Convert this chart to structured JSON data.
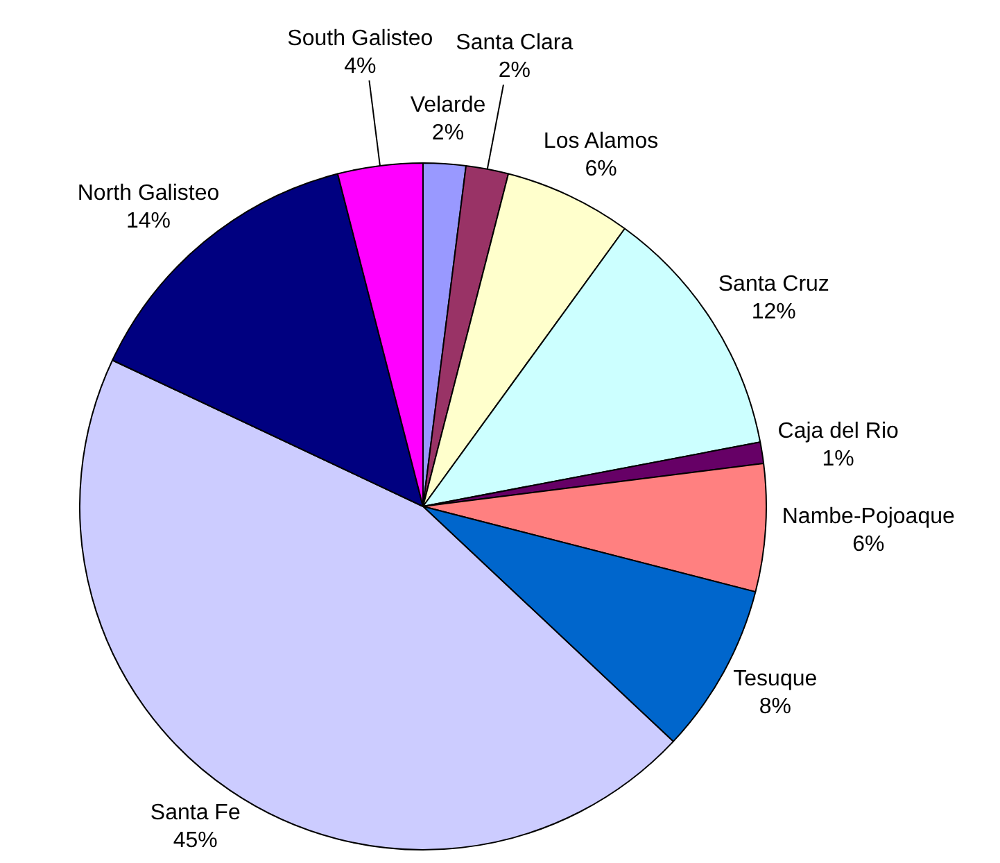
{
  "chart_data": {
    "type": "pie",
    "categories": [
      "Velarde",
      "Santa Clara",
      "Los Alamos",
      "Santa Cruz",
      "Caja del Rio",
      "Nambe-Pojoaque",
      "Tesuque",
      "Santa Fe",
      "North Galisteo",
      "South Galisteo"
    ],
    "values": [
      2,
      2,
      6,
      12,
      1,
      6,
      8,
      45,
      14,
      4
    ],
    "value_labels": [
      "2%",
      "2%",
      "6%",
      "12%",
      "1%",
      "6%",
      "8%",
      "45%",
      "14%",
      "4%"
    ],
    "colors": [
      "#9999ff",
      "#993366",
      "#ffffcc",
      "#ccffff",
      "#660066",
      "#ff8080",
      "#0066cc",
      "#ccccff",
      "#000080",
      "#ff00ff"
    ],
    "legend": false
  }
}
